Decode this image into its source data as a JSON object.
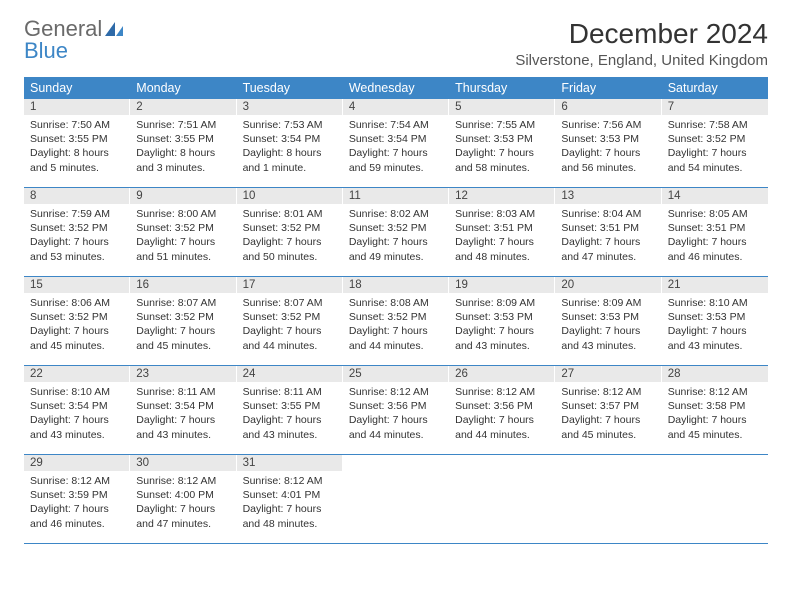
{
  "brand": {
    "part1": "General",
    "part2": "Blue"
  },
  "header": {
    "month_title": "December 2024",
    "location": "Silverstone, England, United Kingdom"
  },
  "colors": {
    "accent": "#3d86c6",
    "daynum_bg": "#e9e9e9",
    "text": "#333333",
    "background": "#ffffff"
  },
  "weekdays": [
    "Sunday",
    "Monday",
    "Tuesday",
    "Wednesday",
    "Thursday",
    "Friday",
    "Saturday"
  ],
  "weeks": [
    [
      {
        "n": "1",
        "sunrise": "Sunrise: 7:50 AM",
        "sunset": "Sunset: 3:55 PM",
        "daylight": "Daylight: 8 hours and 5 minutes."
      },
      {
        "n": "2",
        "sunrise": "Sunrise: 7:51 AM",
        "sunset": "Sunset: 3:55 PM",
        "daylight": "Daylight: 8 hours and 3 minutes."
      },
      {
        "n": "3",
        "sunrise": "Sunrise: 7:53 AM",
        "sunset": "Sunset: 3:54 PM",
        "daylight": "Daylight: 8 hours and 1 minute."
      },
      {
        "n": "4",
        "sunrise": "Sunrise: 7:54 AM",
        "sunset": "Sunset: 3:54 PM",
        "daylight": "Daylight: 7 hours and 59 minutes."
      },
      {
        "n": "5",
        "sunrise": "Sunrise: 7:55 AM",
        "sunset": "Sunset: 3:53 PM",
        "daylight": "Daylight: 7 hours and 58 minutes."
      },
      {
        "n": "6",
        "sunrise": "Sunrise: 7:56 AM",
        "sunset": "Sunset: 3:53 PM",
        "daylight": "Daylight: 7 hours and 56 minutes."
      },
      {
        "n": "7",
        "sunrise": "Sunrise: 7:58 AM",
        "sunset": "Sunset: 3:52 PM",
        "daylight": "Daylight: 7 hours and 54 minutes."
      }
    ],
    [
      {
        "n": "8",
        "sunrise": "Sunrise: 7:59 AM",
        "sunset": "Sunset: 3:52 PM",
        "daylight": "Daylight: 7 hours and 53 minutes."
      },
      {
        "n": "9",
        "sunrise": "Sunrise: 8:00 AM",
        "sunset": "Sunset: 3:52 PM",
        "daylight": "Daylight: 7 hours and 51 minutes."
      },
      {
        "n": "10",
        "sunrise": "Sunrise: 8:01 AM",
        "sunset": "Sunset: 3:52 PM",
        "daylight": "Daylight: 7 hours and 50 minutes."
      },
      {
        "n": "11",
        "sunrise": "Sunrise: 8:02 AM",
        "sunset": "Sunset: 3:52 PM",
        "daylight": "Daylight: 7 hours and 49 minutes."
      },
      {
        "n": "12",
        "sunrise": "Sunrise: 8:03 AM",
        "sunset": "Sunset: 3:51 PM",
        "daylight": "Daylight: 7 hours and 48 minutes."
      },
      {
        "n": "13",
        "sunrise": "Sunrise: 8:04 AM",
        "sunset": "Sunset: 3:51 PM",
        "daylight": "Daylight: 7 hours and 47 minutes."
      },
      {
        "n": "14",
        "sunrise": "Sunrise: 8:05 AM",
        "sunset": "Sunset: 3:51 PM",
        "daylight": "Daylight: 7 hours and 46 minutes."
      }
    ],
    [
      {
        "n": "15",
        "sunrise": "Sunrise: 8:06 AM",
        "sunset": "Sunset: 3:52 PM",
        "daylight": "Daylight: 7 hours and 45 minutes."
      },
      {
        "n": "16",
        "sunrise": "Sunrise: 8:07 AM",
        "sunset": "Sunset: 3:52 PM",
        "daylight": "Daylight: 7 hours and 45 minutes."
      },
      {
        "n": "17",
        "sunrise": "Sunrise: 8:07 AM",
        "sunset": "Sunset: 3:52 PM",
        "daylight": "Daylight: 7 hours and 44 minutes."
      },
      {
        "n": "18",
        "sunrise": "Sunrise: 8:08 AM",
        "sunset": "Sunset: 3:52 PM",
        "daylight": "Daylight: 7 hours and 44 minutes."
      },
      {
        "n": "19",
        "sunrise": "Sunrise: 8:09 AM",
        "sunset": "Sunset: 3:53 PM",
        "daylight": "Daylight: 7 hours and 43 minutes."
      },
      {
        "n": "20",
        "sunrise": "Sunrise: 8:09 AM",
        "sunset": "Sunset: 3:53 PM",
        "daylight": "Daylight: 7 hours and 43 minutes."
      },
      {
        "n": "21",
        "sunrise": "Sunrise: 8:10 AM",
        "sunset": "Sunset: 3:53 PM",
        "daylight": "Daylight: 7 hours and 43 minutes."
      }
    ],
    [
      {
        "n": "22",
        "sunrise": "Sunrise: 8:10 AM",
        "sunset": "Sunset: 3:54 PM",
        "daylight": "Daylight: 7 hours and 43 minutes."
      },
      {
        "n": "23",
        "sunrise": "Sunrise: 8:11 AM",
        "sunset": "Sunset: 3:54 PM",
        "daylight": "Daylight: 7 hours and 43 minutes."
      },
      {
        "n": "24",
        "sunrise": "Sunrise: 8:11 AM",
        "sunset": "Sunset: 3:55 PM",
        "daylight": "Daylight: 7 hours and 43 minutes."
      },
      {
        "n": "25",
        "sunrise": "Sunrise: 8:12 AM",
        "sunset": "Sunset: 3:56 PM",
        "daylight": "Daylight: 7 hours and 44 minutes."
      },
      {
        "n": "26",
        "sunrise": "Sunrise: 8:12 AM",
        "sunset": "Sunset: 3:56 PM",
        "daylight": "Daylight: 7 hours and 44 minutes."
      },
      {
        "n": "27",
        "sunrise": "Sunrise: 8:12 AM",
        "sunset": "Sunset: 3:57 PM",
        "daylight": "Daylight: 7 hours and 45 minutes."
      },
      {
        "n": "28",
        "sunrise": "Sunrise: 8:12 AM",
        "sunset": "Sunset: 3:58 PM",
        "daylight": "Daylight: 7 hours and 45 minutes."
      }
    ],
    [
      {
        "n": "29",
        "sunrise": "Sunrise: 8:12 AM",
        "sunset": "Sunset: 3:59 PM",
        "daylight": "Daylight: 7 hours and 46 minutes."
      },
      {
        "n": "30",
        "sunrise": "Sunrise: 8:12 AM",
        "sunset": "Sunset: 4:00 PM",
        "daylight": "Daylight: 7 hours and 47 minutes."
      },
      {
        "n": "31",
        "sunrise": "Sunrise: 8:12 AM",
        "sunset": "Sunset: 4:01 PM",
        "daylight": "Daylight: 7 hours and 48 minutes."
      },
      null,
      null,
      null,
      null
    ]
  ]
}
